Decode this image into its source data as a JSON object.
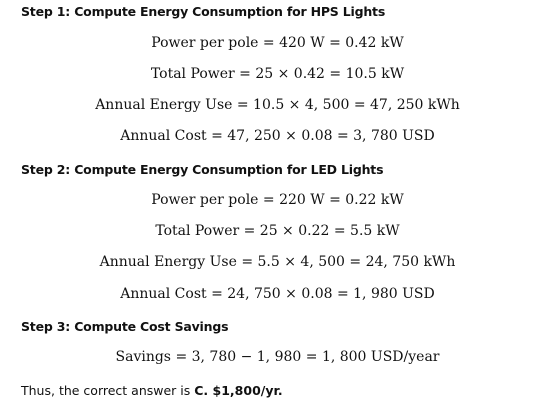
{
  "steps": [
    {
      "heading": "Step 1: Compute Energy Consumption for HPS Lights",
      "equations": [
        "Power per pole = 420 W = 0.42 kW",
        "Total Power = 25 × 0.42 = 10.5 kW",
        "Annual Energy Use = 10.5 × 4, 500 = 47, 250 kWh",
        "Annual Cost = 47, 250 × 0.08 = 3, 780 USD"
      ]
    },
    {
      "heading": "Step 2: Compute Energy Consumption for LED Lights",
      "equations": [
        "Power per pole = 220 W = 0.22 kW",
        "Total Power = 25 × 0.22 = 5.5 kW",
        "Annual Energy Use = 5.5 × 4, 500 = 24, 750 kWh",
        "Annual Cost = 24, 750 × 0.08 = 1, 980 USD"
      ]
    },
    {
      "heading": "Step 3: Compute Cost Savings",
      "equations": [
        "Savings = 3, 780 − 1, 980 = 1, 800 USD/year"
      ]
    }
  ],
  "conclusion": {
    "prefix": "Thus, the correct answer is ",
    "answer": "C. $1,800/yr."
  }
}
